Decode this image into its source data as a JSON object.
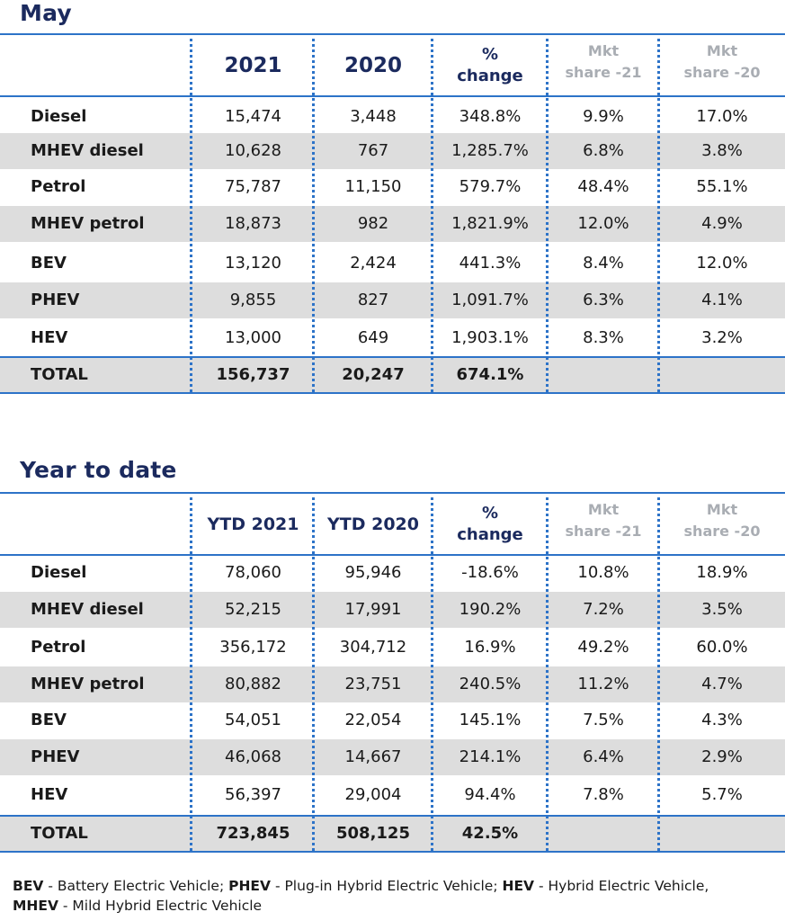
{
  "may": {
    "title": "May",
    "headers": {
      "y1": "2021",
      "y2": "2020",
      "change_line1": "%",
      "change_line2": "change",
      "mkt21_line1": "Mkt",
      "mkt21_line2": "share -21",
      "mkt20_line1": "Mkt",
      "mkt20_line2": "share -20"
    },
    "rows": [
      {
        "label": "Diesel",
        "v1": "15,474",
        "v2": "3,448",
        "chg": "348.8%",
        "m21": "9.9%",
        "m20": "17.0%"
      },
      {
        "label": "MHEV diesel",
        "v1": "10,628",
        "v2": "767",
        "chg": "1,285.7%",
        "m21": "6.8%",
        "m20": "3.8%"
      },
      {
        "label": "Petrol",
        "v1": "75,787",
        "v2": "11,150",
        "chg": "579.7%",
        "m21": "48.4%",
        "m20": "55.1%"
      },
      {
        "label": "MHEV petrol",
        "v1": "18,873",
        "v2": "982",
        "chg": "1,821.9%",
        "m21": "12.0%",
        "m20": "4.9%"
      },
      {
        "label": "BEV",
        "v1": "13,120",
        "v2": "2,424",
        "chg": "441.3%",
        "m21": "8.4%",
        "m20": "12.0%"
      },
      {
        "label": "PHEV",
        "v1": "9,855",
        "v2": "827",
        "chg": "1,091.7%",
        "m21": "6.3%",
        "m20": "4.1%"
      },
      {
        "label": "HEV",
        "v1": "13,000",
        "v2": "649",
        "chg": "1,903.1%",
        "m21": "8.3%",
        "m20": "3.2%"
      }
    ],
    "total": {
      "label": "TOTAL",
      "v1": "156,737",
      "v2": "20,247",
      "chg": "674.1%"
    }
  },
  "ytd": {
    "title": "Year to date",
    "headers": {
      "y1": "YTD 2021",
      "y2": "YTD 2020",
      "change_line1": "%",
      "change_line2": "change",
      "mkt21_line1": "Mkt",
      "mkt21_line2": "share -21",
      "mkt20_line1": "Mkt",
      "mkt20_line2": "share -20"
    },
    "rows": [
      {
        "label": "Diesel",
        "v1": "78,060",
        "v2": "95,946",
        "chg": "-18.6%",
        "m21": "10.8%",
        "m20": "18.9%"
      },
      {
        "label": "MHEV diesel",
        "v1": "52,215",
        "v2": "17,991",
        "chg": "190.2%",
        "m21": "7.2%",
        "m20": "3.5%"
      },
      {
        "label": "Petrol",
        "v1": "356,172",
        "v2": "304,712",
        "chg": "16.9%",
        "m21": "49.2%",
        "m20": "60.0%"
      },
      {
        "label": "MHEV petrol",
        "v1": "80,882",
        "v2": "23,751",
        "chg": "240.5%",
        "m21": "11.2%",
        "m20": "4.7%"
      },
      {
        "label": "BEV",
        "v1": "54,051",
        "v2": "22,054",
        "chg": "145.1%",
        "m21": "7.5%",
        "m20": "4.3%"
      },
      {
        "label": "PHEV",
        "v1": "46,068",
        "v2": "14,667",
        "chg": "214.1%",
        "m21": "6.4%",
        "m20": "2.9%"
      },
      {
        "label": "HEV",
        "v1": "56,397",
        "v2": "29,004",
        "chg": "94.4%",
        "m21": "7.8%",
        "m20": "5.7%"
      }
    ],
    "total": {
      "label": "TOTAL",
      "v1": "723,845",
      "v2": "508,125",
      "chg": "42.5%"
    }
  },
  "legend": {
    "bev_abbr": "BEV",
    "bev_text": " - Battery Electric Vehicle; ",
    "phev_abbr": "PHEV",
    "phev_text": " - Plug-in Hybrid Electric Vehicle; ",
    "hev_abbr": "HEV",
    "hev_text": " - Hybrid Electric Vehicle,",
    "mhev_abbr": "MHEV",
    "mhev_text": " - Mild Hybrid Electric Vehicle"
  },
  "colors": {
    "title": "#1b2a5e",
    "rule": "#2d73c8",
    "shade": "#dddddd",
    "muted_header": "#a9adb3"
  }
}
